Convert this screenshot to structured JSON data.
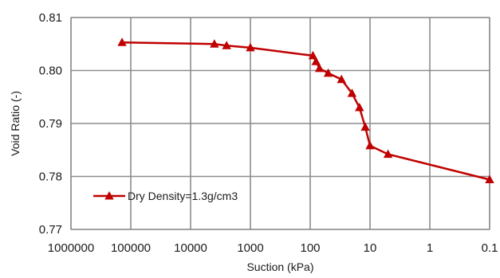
{
  "chart_data": {
    "type": "scatter",
    "xlabel": "Suction (kPa)",
    "ylabel": "Void Ratio (-)",
    "x_scale": "log",
    "x_reversed": true,
    "xlim": [
      1000000,
      0.1
    ],
    "ylim": [
      0.77,
      0.81
    ],
    "x_ticks": [
      1000000,
      100000,
      10000,
      1000,
      100,
      10,
      1,
      0.1
    ],
    "x_tick_labels": [
      "1000000",
      "100000",
      "10000",
      "1000",
      "100",
      "10",
      "1",
      "0.1"
    ],
    "y_ticks": [
      0.77,
      0.78,
      0.79,
      0.8,
      0.81
    ],
    "y_tick_labels": [
      "0.77",
      "0.78",
      "0.79",
      "0.80",
      "0.81"
    ],
    "grid": true,
    "legend_position": "bottom-left",
    "color": "#c00000",
    "marker": "triangle",
    "series": [
      {
        "name": "Dry Density=1.3g/cm3",
        "x": [
          140000,
          4000,
          2500,
          1000,
          90,
          80,
          70,
          50,
          30,
          20,
          15,
          12,
          10,
          5,
          0.1
        ],
        "y": [
          0.8053,
          0.805,
          0.8047,
          0.8043,
          0.8028,
          0.8017,
          0.8004,
          0.7995,
          0.7983,
          0.7957,
          0.793,
          0.7893,
          0.7858,
          0.7842,
          0.7794
        ]
      }
    ]
  }
}
